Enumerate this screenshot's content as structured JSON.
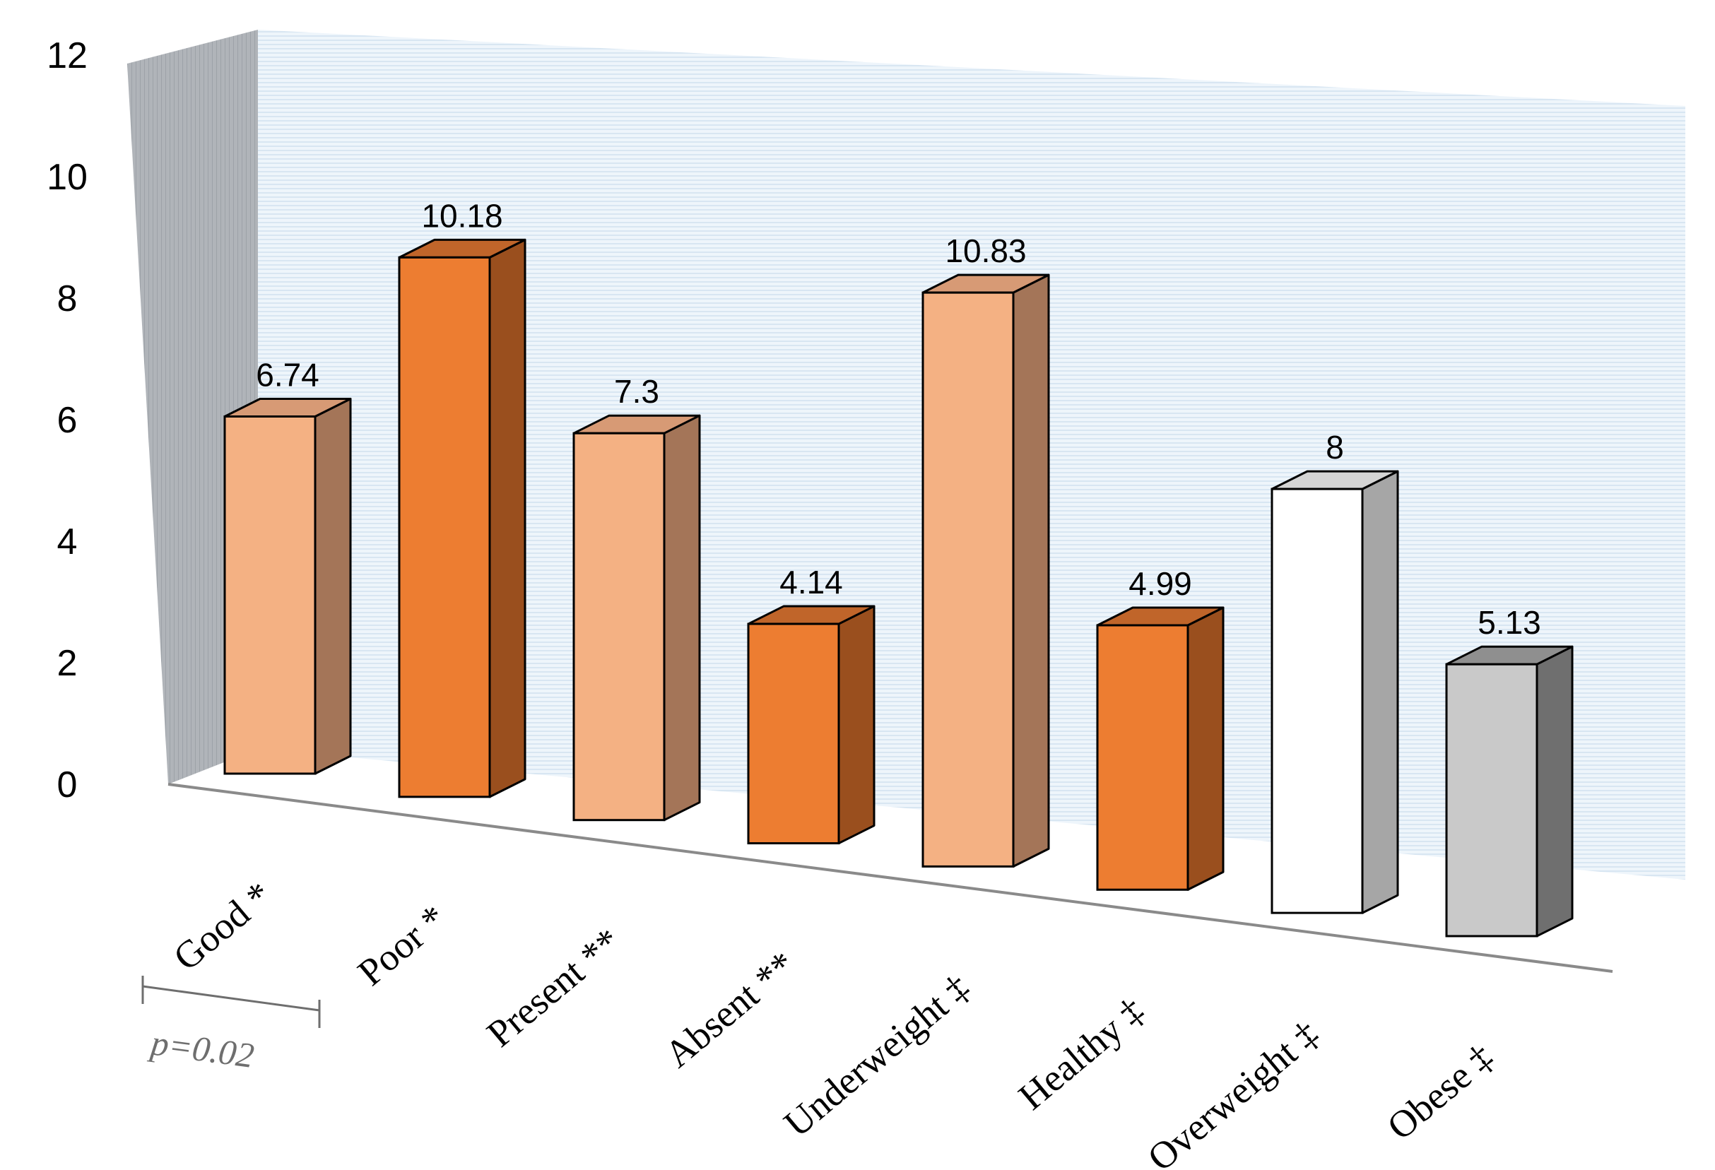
{
  "chart_data": {
    "type": "bar",
    "title": "",
    "xlabel": "",
    "ylabel": "",
    "ylim": [
      0,
      12
    ],
    "yticks": [
      "0",
      "2",
      "4",
      "6",
      "8",
      "10",
      "12"
    ],
    "categories": [
      "Good *",
      "Poor *",
      "Present **",
      "Absent **",
      "Underweight ‡",
      "Healthy ‡",
      "Overweight ‡",
      "Obese ‡"
    ],
    "values": [
      6.74,
      10.18,
      7.3,
      4.14,
      10.83,
      4.99,
      8,
      5.13
    ],
    "value_labels": [
      "6.74",
      "10.18",
      "7.3",
      "4.14",
      "10.83",
      "4.99",
      "8",
      "5.13"
    ],
    "bar_styles": [
      "light-orange",
      "orange",
      "light-orange",
      "orange",
      "light-orange",
      "orange",
      "white",
      "gray"
    ],
    "colors": {
      "light-orange": "#f4b183",
      "orange": "#ed7d31",
      "white": "#ffffff",
      "gray": "#c9c9c9",
      "back_wall": "#ecf3fa",
      "side_wall": "#a8adb3"
    },
    "annotation": {
      "text": "p=0.02"
    },
    "grid": false,
    "legend": "none",
    "style": "3d"
  }
}
